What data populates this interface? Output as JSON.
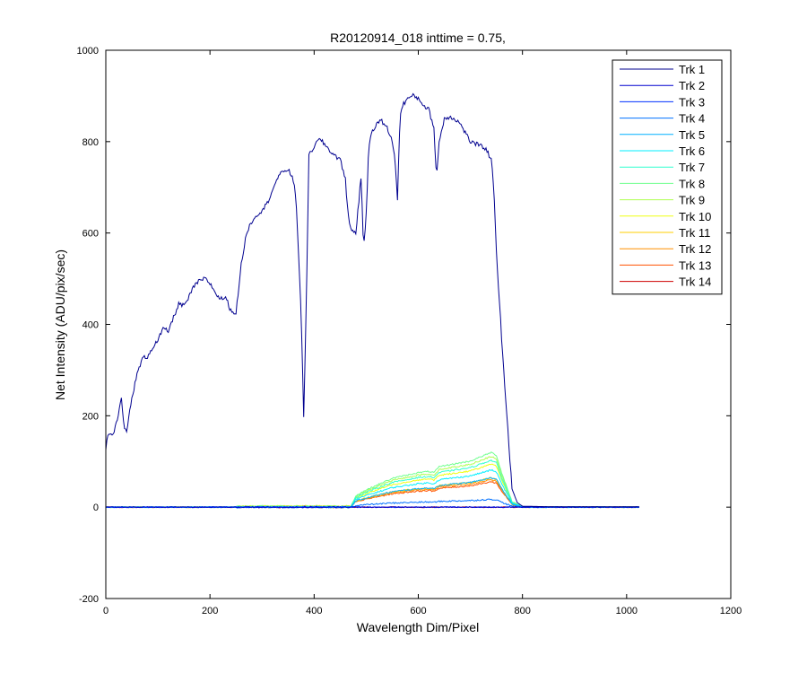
{
  "chart_data": {
    "type": "line",
    "title": "R20120914_018 inttime = 0.75,",
    "xlabel": "Wavelength Dim/Pixel",
    "ylabel": "Net Intensity (ADU/pix/sec)",
    "xlim": [
      0,
      1200
    ],
    "ylim": [
      -200,
      1000
    ],
    "xticks": [
      0,
      200,
      400,
      600,
      800,
      1000,
      1200
    ],
    "yticks": [
      -200,
      0,
      200,
      400,
      600,
      800,
      1000
    ],
    "grid": false,
    "legend_position": "top-right",
    "series": [
      {
        "name": "Trk 1",
        "color": "#00008F",
        "main": true
      },
      {
        "name": "Trk 2",
        "color": "#0000CF",
        "scale": 0
      },
      {
        "name": "Trk 3",
        "color": "#0030FF",
        "scale": 0
      },
      {
        "name": "Trk 4",
        "color": "#0070FF",
        "scale": 0.02
      },
      {
        "name": "Trk 5",
        "color": "#00AFFF",
        "scale": 0.075
      },
      {
        "name": "Trk 6",
        "color": "#00EFFF",
        "scale": 0.095
      },
      {
        "name": "Trk 7",
        "color": "#30FFCF",
        "scale": 0.12
      },
      {
        "name": "Trk 8",
        "color": "#70FF8F",
        "scale": 0.14
      },
      {
        "name": "Trk 9",
        "color": "#AFFF50",
        "scale": 0.13
      },
      {
        "name": "Trk 10",
        "color": "#EFFF10",
        "scale": 0.11
      },
      {
        "name": "Trk 11",
        "color": "#FFCF00",
        "scale": 0.075
      },
      {
        "name": "Trk 12",
        "color": "#FF8F00",
        "scale": 0.07
      },
      {
        "name": "Trk 13",
        "color": "#FF5000",
        "scale": 0.065
      },
      {
        "name": "Trk 14",
        "color": "#CF0000",
        "scale": 0
      }
    ],
    "trk1_anchor_points": [
      [
        0,
        130
      ],
      [
        5,
        165
      ],
      [
        15,
        160
      ],
      [
        25,
        210
      ],
      [
        30,
        235
      ],
      [
        35,
        175
      ],
      [
        40,
        165
      ],
      [
        50,
        240
      ],
      [
        60,
        290
      ],
      [
        70,
        325
      ],
      [
        80,
        330
      ],
      [
        90,
        350
      ],
      [
        100,
        365
      ],
      [
        110,
        390
      ],
      [
        120,
        385
      ],
      [
        130,
        415
      ],
      [
        140,
        445
      ],
      [
        150,
        440
      ],
      [
        160,
        460
      ],
      [
        170,
        485
      ],
      [
        180,
        495
      ],
      [
        190,
        500
      ],
      [
        200,
        490
      ],
      [
        210,
        470
      ],
      [
        220,
        455
      ],
      [
        230,
        460
      ],
      [
        240,
        430
      ],
      [
        250,
        425
      ],
      [
        260,
        530
      ],
      [
        270,
        600
      ],
      [
        280,
        625
      ],
      [
        290,
        640
      ],
      [
        300,
        650
      ],
      [
        310,
        665
      ],
      [
        320,
        695
      ],
      [
        330,
        720
      ],
      [
        340,
        735
      ],
      [
        350,
        740
      ],
      [
        360,
        715
      ],
      [
        365,
        680
      ],
      [
        370,
        560
      ],
      [
        375,
        420
      ],
      [
        380,
        200
      ],
      [
        385,
        450
      ],
      [
        390,
        770
      ],
      [
        400,
        790
      ],
      [
        410,
        805
      ],
      [
        420,
        795
      ],
      [
        430,
        780
      ],
      [
        440,
        770
      ],
      [
        450,
        760
      ],
      [
        460,
        720
      ],
      [
        465,
        640
      ],
      [
        470,
        610
      ],
      [
        480,
        600
      ],
      [
        490,
        720
      ],
      [
        495,
        570
      ],
      [
        500,
        640
      ],
      [
        505,
        790
      ],
      [
        510,
        820
      ],
      [
        520,
        840
      ],
      [
        530,
        845
      ],
      [
        540,
        830
      ],
      [
        550,
        800
      ],
      [
        555,
        770
      ],
      [
        560,
        670
      ],
      [
        565,
        860
      ],
      [
        570,
        880
      ],
      [
        580,
        895
      ],
      [
        590,
        900
      ],
      [
        600,
        895
      ],
      [
        610,
        880
      ],
      [
        620,
        870
      ],
      [
        630,
        830
      ],
      [
        635,
        720
      ],
      [
        640,
        800
      ],
      [
        650,
        850
      ],
      [
        660,
        855
      ],
      [
        670,
        850
      ],
      [
        680,
        840
      ],
      [
        690,
        820
      ],
      [
        700,
        800
      ],
      [
        710,
        795
      ],
      [
        720,
        790
      ],
      [
        730,
        785
      ],
      [
        740,
        760
      ],
      [
        745,
        700
      ],
      [
        750,
        560
      ],
      [
        760,
        370
      ],
      [
        770,
        200
      ],
      [
        780,
        40
      ],
      [
        790,
        10
      ],
      [
        800,
        2
      ],
      [
        850,
        1
      ],
      [
        1025,
        1
      ]
    ],
    "track_shape_points": [
      [
        0,
        0
      ],
      [
        470,
        0
      ],
      [
        480,
        0.2
      ],
      [
        500,
        0.3
      ],
      [
        550,
        0.5
      ],
      [
        600,
        0.6
      ],
      [
        620,
        0.62
      ],
      [
        630,
        0.6
      ],
      [
        640,
        0.7
      ],
      [
        650,
        0.72
      ],
      [
        700,
        0.8
      ],
      [
        740,
        0.95
      ],
      [
        750,
        0.9
      ],
      [
        760,
        0.6
      ],
      [
        780,
        0.1
      ],
      [
        800,
        0
      ],
      [
        1025,
        0
      ]
    ]
  }
}
